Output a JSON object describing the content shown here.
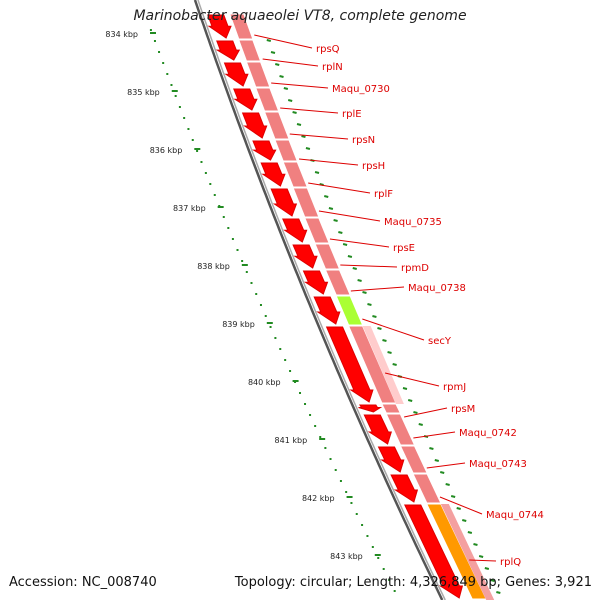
{
  "title": "Marinobacter aquaeolei VT8, complete genome",
  "footer": {
    "accession": "Accession: NC_008740",
    "stats": "Topology: circular; Length: 4,326,849 bp; Genes: 3,921"
  },
  "colors": {
    "gene": "#ff0000",
    "gene_shadow": "#dd0000",
    "cds_band": "#f08080",
    "secY": "#aaff33",
    "orange_gene": "#ff9900",
    "backbone": "#808080",
    "tick": "#228B22",
    "label": "#dd0000"
  },
  "scale": {
    "labels": [
      "834 kbp",
      "835 kbp",
      "836 kbp",
      "837 kbp",
      "838 kbp",
      "839 kbp",
      "840 kbp",
      "841 kbp",
      "842 kbp",
      "843 kbp"
    ]
  },
  "genes": [
    {
      "name": "rpsQ"
    },
    {
      "name": "rplN"
    },
    {
      "name": "Maqu_0730"
    },
    {
      "name": "rplE"
    },
    {
      "name": "rpsN"
    },
    {
      "name": "rpsH"
    },
    {
      "name": "rplF"
    },
    {
      "name": "Maqu_0735"
    },
    {
      "name": "rpsE"
    },
    {
      "name": "rpmD"
    },
    {
      "name": "Maqu_0738"
    },
    {
      "name": "secY"
    },
    {
      "name": "rpmJ"
    },
    {
      "name": "rpsM"
    },
    {
      "name": "Maqu_0742"
    },
    {
      "name": "Maqu_0743"
    },
    {
      "name": "Maqu_0744"
    },
    {
      "name": "rplQ"
    }
  ]
}
